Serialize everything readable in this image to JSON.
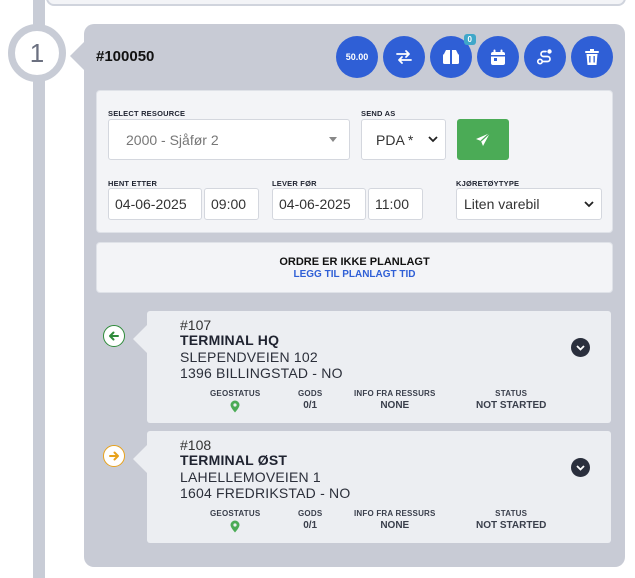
{
  "step": {
    "number": "1"
  },
  "order": {
    "id": "#100050",
    "toolbar": {
      "amount_label": "50.00",
      "swap_icon": "swap-arrows-icon",
      "package_icon": "package-icon",
      "package_badge": "0",
      "calendar_icon": "calendar-icon",
      "route_icon": "route-icon",
      "delete_icon": "trash-icon",
      "accent": "#2f5fd6"
    }
  },
  "form": {
    "resource_label": "SELECT RESOURCE",
    "resource_value": "2000 - Sjåfør 2",
    "send_as_label": "SEND AS",
    "send_as_value": "PDA *",
    "send_icon": "paper-plane-icon",
    "send_color": "#4bab56",
    "pickup_label": "HENT ETTER",
    "pickup_date": "04-06-2025",
    "pickup_time": "09:00",
    "deliver_label": "LEVER FØR",
    "deliver_date": "04-06-2025",
    "deliver_time": "11:00",
    "vehicle_label": "KJØRETØYTYPE",
    "vehicle_value": "Liten varebil"
  },
  "planning": {
    "title": "ORDRE ER IKKE PLANLAGT",
    "link": "LEGG TIL PLANLAGT TID"
  },
  "stops": [
    {
      "direction_icon": "arrow-left-icon",
      "direction_color": "#2e8b3a",
      "number": "#107",
      "name": "TERMINAL HQ",
      "address1": "SLEPENDVEIEN 102",
      "address2": "1396 BILLINGSTAD - NO",
      "geostatus_label": "GEOSTATUS",
      "geostatus_icon": "map-pin-icon",
      "gods_label": "GODS",
      "gods_value": "0/1",
      "info_label": "INFO FRA RESSURS",
      "info_value": "NONE",
      "status_label": "STATUS",
      "status_value": "NOT STARTED"
    },
    {
      "direction_icon": "arrow-right-icon",
      "direction_color": "#e8a21c",
      "number": "#108",
      "name": "TERMINAL ØST",
      "address1": "LAHELLEMOVEIEN 1",
      "address2": "1604 FREDRIKSTAD - NO",
      "geostatus_label": "GEOSTATUS",
      "geostatus_icon": "map-pin-icon",
      "gods_label": "GODS",
      "gods_value": "0/1",
      "info_label": "INFO FRA RESSURS",
      "info_value": "NONE",
      "status_label": "STATUS",
      "status_value": "NOT STARTED"
    }
  ]
}
